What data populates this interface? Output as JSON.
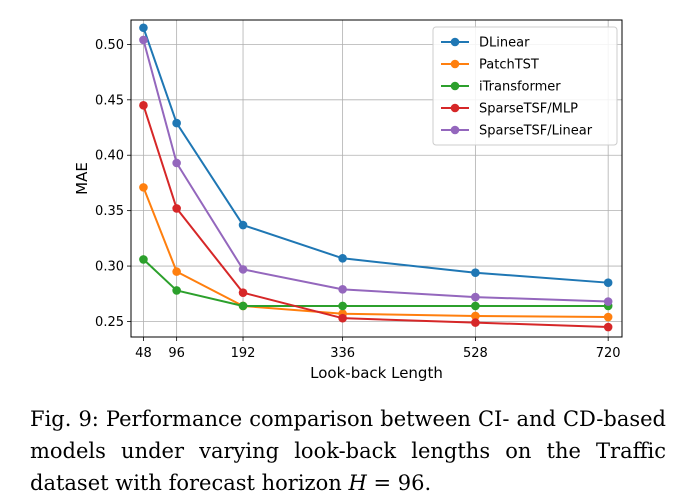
{
  "chart_data": {
    "type": "line",
    "xlabel": "Look-back Length",
    "ylabel": "MAE",
    "x": [
      48,
      96,
      192,
      336,
      528,
      720
    ],
    "xticks": [
      "48",
      "96",
      "192",
      "336",
      "528",
      "720"
    ],
    "xlim": [
      30,
      740
    ],
    "ylim": [
      0.236,
      0.522
    ],
    "yticks": [
      "0.25",
      "0.30",
      "0.35",
      "0.40",
      "0.45",
      "0.50"
    ],
    "ytick_values": [
      0.25,
      0.3,
      0.35,
      0.4,
      0.45,
      0.5
    ],
    "grid": true,
    "legend_position": "top-right",
    "series": [
      {
        "name": "DLinear",
        "color": "#1f77b4",
        "values": [
          0.515,
          0.429,
          0.337,
          0.307,
          0.294,
          0.285
        ]
      },
      {
        "name": "PatchTST",
        "color": "#ff7f0e",
        "values": [
          0.371,
          0.295,
          0.264,
          0.257,
          0.255,
          0.254
        ]
      },
      {
        "name": "iTransformer",
        "color": "#2ca02c",
        "values": [
          0.306,
          0.278,
          0.264,
          0.264,
          0.264,
          0.264
        ]
      },
      {
        "name": "SparseTSF/MLP",
        "color": "#d62728",
        "values": [
          0.445,
          0.352,
          0.276,
          0.253,
          0.249,
          0.245
        ]
      },
      {
        "name": "SparseTSF/Linear",
        "color": "#9467bd",
        "values": [
          0.504,
          0.393,
          0.297,
          0.279,
          0.272,
          0.268
        ]
      }
    ]
  },
  "caption": {
    "prefix": "Fig. 9: Performance comparison between CI- and CD-based models under varying look-back lengths on the Traffic dataset with forecast horizon ",
    "math_var": "H",
    "math_rest": " = 96."
  }
}
